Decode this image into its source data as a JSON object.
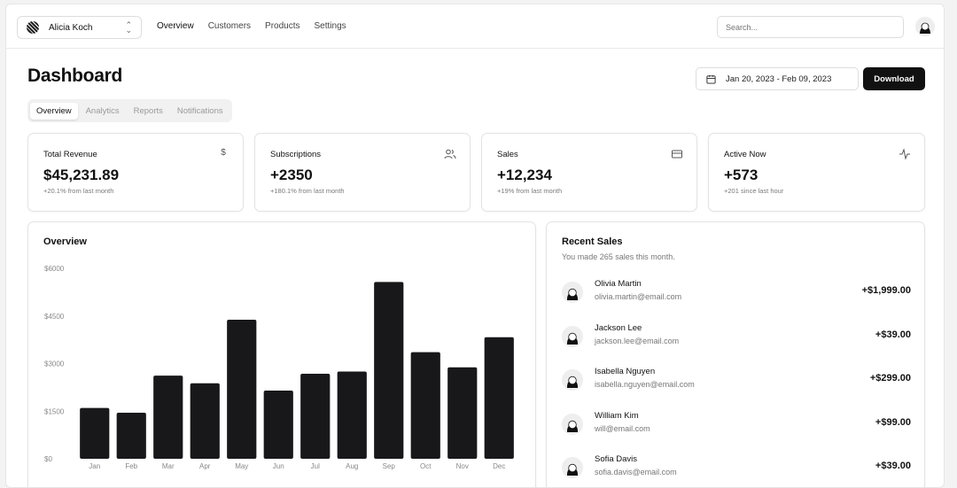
{
  "header": {
    "team_name": "Alicia Koch",
    "nav": [
      "Overview",
      "Customers",
      "Products",
      "Settings"
    ],
    "search_placeholder": "Search..."
  },
  "page": {
    "title": "Dashboard",
    "date_range": "Jan 20, 2023 - Feb 09, 2023",
    "download_label": "Download",
    "tabs": [
      "Overview",
      "Analytics",
      "Reports",
      "Notifications"
    ]
  },
  "stats": [
    {
      "label": "Total Revenue",
      "value": "$45,231.89",
      "sub": "+20.1% from last month",
      "icon": "dollar-icon"
    },
    {
      "label": "Subscriptions",
      "value": "+2350",
      "sub": "+180.1% from last month",
      "icon": "users-icon"
    },
    {
      "label": "Sales",
      "value": "+12,234",
      "sub": "+19% from last month",
      "icon": "credit-card-icon"
    },
    {
      "label": "Active Now",
      "value": "+573",
      "sub": "+201 since last hour",
      "icon": "activity-icon"
    }
  ],
  "overview": {
    "title": "Overview"
  },
  "chart_data": {
    "type": "bar",
    "categories": [
      "Jan",
      "Feb",
      "Mar",
      "Apr",
      "May",
      "Jun",
      "Jul",
      "Aug",
      "Sep",
      "Oct",
      "Nov",
      "Dec"
    ],
    "values": [
      1600,
      1450,
      2620,
      2380,
      4380,
      2150,
      2680,
      2750,
      5570,
      3360,
      2880,
      3830
    ],
    "yticks": [
      "$0",
      "$1500",
      "$3000",
      "$4500",
      "$6000"
    ],
    "ylim": [
      0,
      6000
    ],
    "bar_color": "#18181b"
  },
  "recent_sales": {
    "title": "Recent Sales",
    "subtitle": "You made 265 sales this month.",
    "items": [
      {
        "name": "Olivia Martin",
        "email": "olivia.martin@email.com",
        "amount": "+$1,999.00"
      },
      {
        "name": "Jackson Lee",
        "email": "jackson.lee@email.com",
        "amount": "+$39.00"
      },
      {
        "name": "Isabella Nguyen",
        "email": "isabella.nguyen@email.com",
        "amount": "+$299.00"
      },
      {
        "name": "William Kim",
        "email": "will@email.com",
        "amount": "+$99.00"
      },
      {
        "name": "Sofia Davis",
        "email": "sofia.davis@email.com",
        "amount": "+$39.00"
      }
    ]
  }
}
